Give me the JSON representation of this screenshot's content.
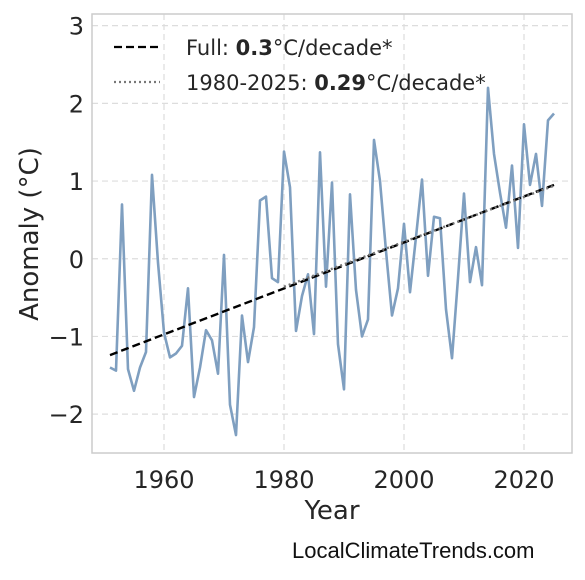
{
  "chart_data": {
    "type": "line",
    "title": "",
    "xlabel": "Year",
    "ylabel": "Anomaly (°C)",
    "xlim": [
      1948,
      2028
    ],
    "ylim": [
      -2.5,
      3.15
    ],
    "xticks": [
      1960,
      1980,
      2000,
      2020
    ],
    "yticks": [
      -2,
      -1,
      0,
      1,
      2,
      3
    ],
    "ytick_labels": [
      "−2",
      "−1",
      "0",
      "1",
      "2",
      "3"
    ],
    "grid": true,
    "legend_position": "top-left",
    "colors": {
      "series": "#7f9fc0",
      "trend_full": "#000000",
      "trend_recent": "#777777",
      "grid": "#dddddd",
      "frame": "#cccccc"
    },
    "series": [
      {
        "x": [
          1951,
          1952,
          1953,
          1954,
          1955,
          1956,
          1957,
          1958,
          1959,
          1960,
          1961,
          1962,
          1963,
          1964,
          1965,
          1966,
          1967,
          1968,
          1969,
          1970,
          1971,
          1972,
          1973,
          1974,
          1975,
          1976,
          1977,
          1978,
          1979,
          1980,
          1981,
          1982,
          1983,
          1984,
          1985,
          1986,
          1987,
          1988,
          1989,
          1990,
          1991,
          1992,
          1993,
          1994,
          1995,
          1996,
          1997,
          1998,
          1999,
          2000,
          2001,
          2002,
          2003,
          2004,
          2005,
          2006,
          2007,
          2008,
          2009,
          2010,
          2011,
          2012,
          2013,
          2014,
          2015,
          2016,
          2017,
          2018,
          2019,
          2020,
          2021,
          2022,
          2023,
          2024,
          2025
        ],
        "values": [
          -1.4,
          -1.44,
          0.7,
          -1.42,
          -1.7,
          -1.4,
          -1.2,
          1.08,
          -0.05,
          -0.95,
          -1.27,
          -1.22,
          -1.12,
          -0.38,
          -1.78,
          -1.4,
          -0.92,
          -1.05,
          -1.48,
          0.05,
          -1.88,
          -2.27,
          -0.73,
          -1.33,
          -0.88,
          0.75,
          0.8,
          -0.25,
          -0.3,
          1.38,
          0.92,
          -0.93,
          -0.48,
          -0.2,
          -0.97,
          1.37,
          -0.36,
          0.98,
          -1.1,
          -1.68,
          0.83,
          -0.4,
          -1.0,
          -0.78,
          1.53,
          1.0,
          0.1,
          -0.73,
          -0.38,
          0.45,
          -0.43,
          0.28,
          1.02,
          -0.22,
          0.54,
          0.52,
          -0.65,
          -1.28,
          -0.25,
          0.84,
          -0.3,
          0.15,
          -0.34,
          2.2,
          1.35,
          0.85,
          0.4,
          1.2,
          0.14,
          1.73,
          0.95,
          1.35,
          0.68,
          1.78,
          1.87
        ]
      }
    ],
    "trends": [
      {
        "label": "Full: ",
        "rate": "0.3",
        "suffix": "°C/decade*",
        "style": "dashed",
        "x": [
          1951,
          2025
        ],
        "y": [
          -1.24,
          0.95
        ]
      },
      {
        "label": "1980-2025: ",
        "rate": "0.29",
        "suffix": "°C/decade*",
        "style": "dotted",
        "x": [
          1980,
          2025
        ],
        "y": [
          -0.36,
          0.94
        ]
      }
    ]
  },
  "watermark": "LocalClimateTrends.com"
}
